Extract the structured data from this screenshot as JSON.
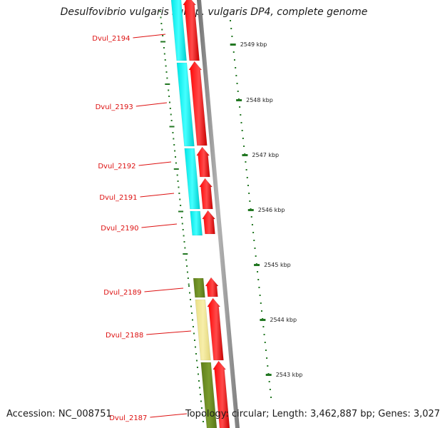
{
  "title": "Desulfovibrio vulgaris subsp. vulgaris DP4, complete genome",
  "accession": "Accession: NC_008751",
  "summary": "Topology: circular; Length: 3,462,887 bp; Genes: 3,027",
  "kbp_ticks": [
    "2549 kbp",
    "2548 kbp",
    "2547 kbp",
    "2546 kbp",
    "2545 kbp",
    "2544 kbp",
    "2543 kbp"
  ],
  "gene_labels": [
    "Dvul_2194",
    "Dvul_2193",
    "Dvul_2192",
    "Dvul_2191",
    "Dvul_2190",
    "Dvul_2189",
    "Dvul_2188",
    "Dvul_2187"
  ],
  "colors": {
    "cds_arrow": "#ff0000",
    "cog_cyan": "#00ffff",
    "cog_olive": "#6b8e23",
    "cog_khaki": "#f0e68c",
    "backbone": "#8c8c8c",
    "tick_green": "#227722",
    "label_red": "#dd1111"
  }
}
